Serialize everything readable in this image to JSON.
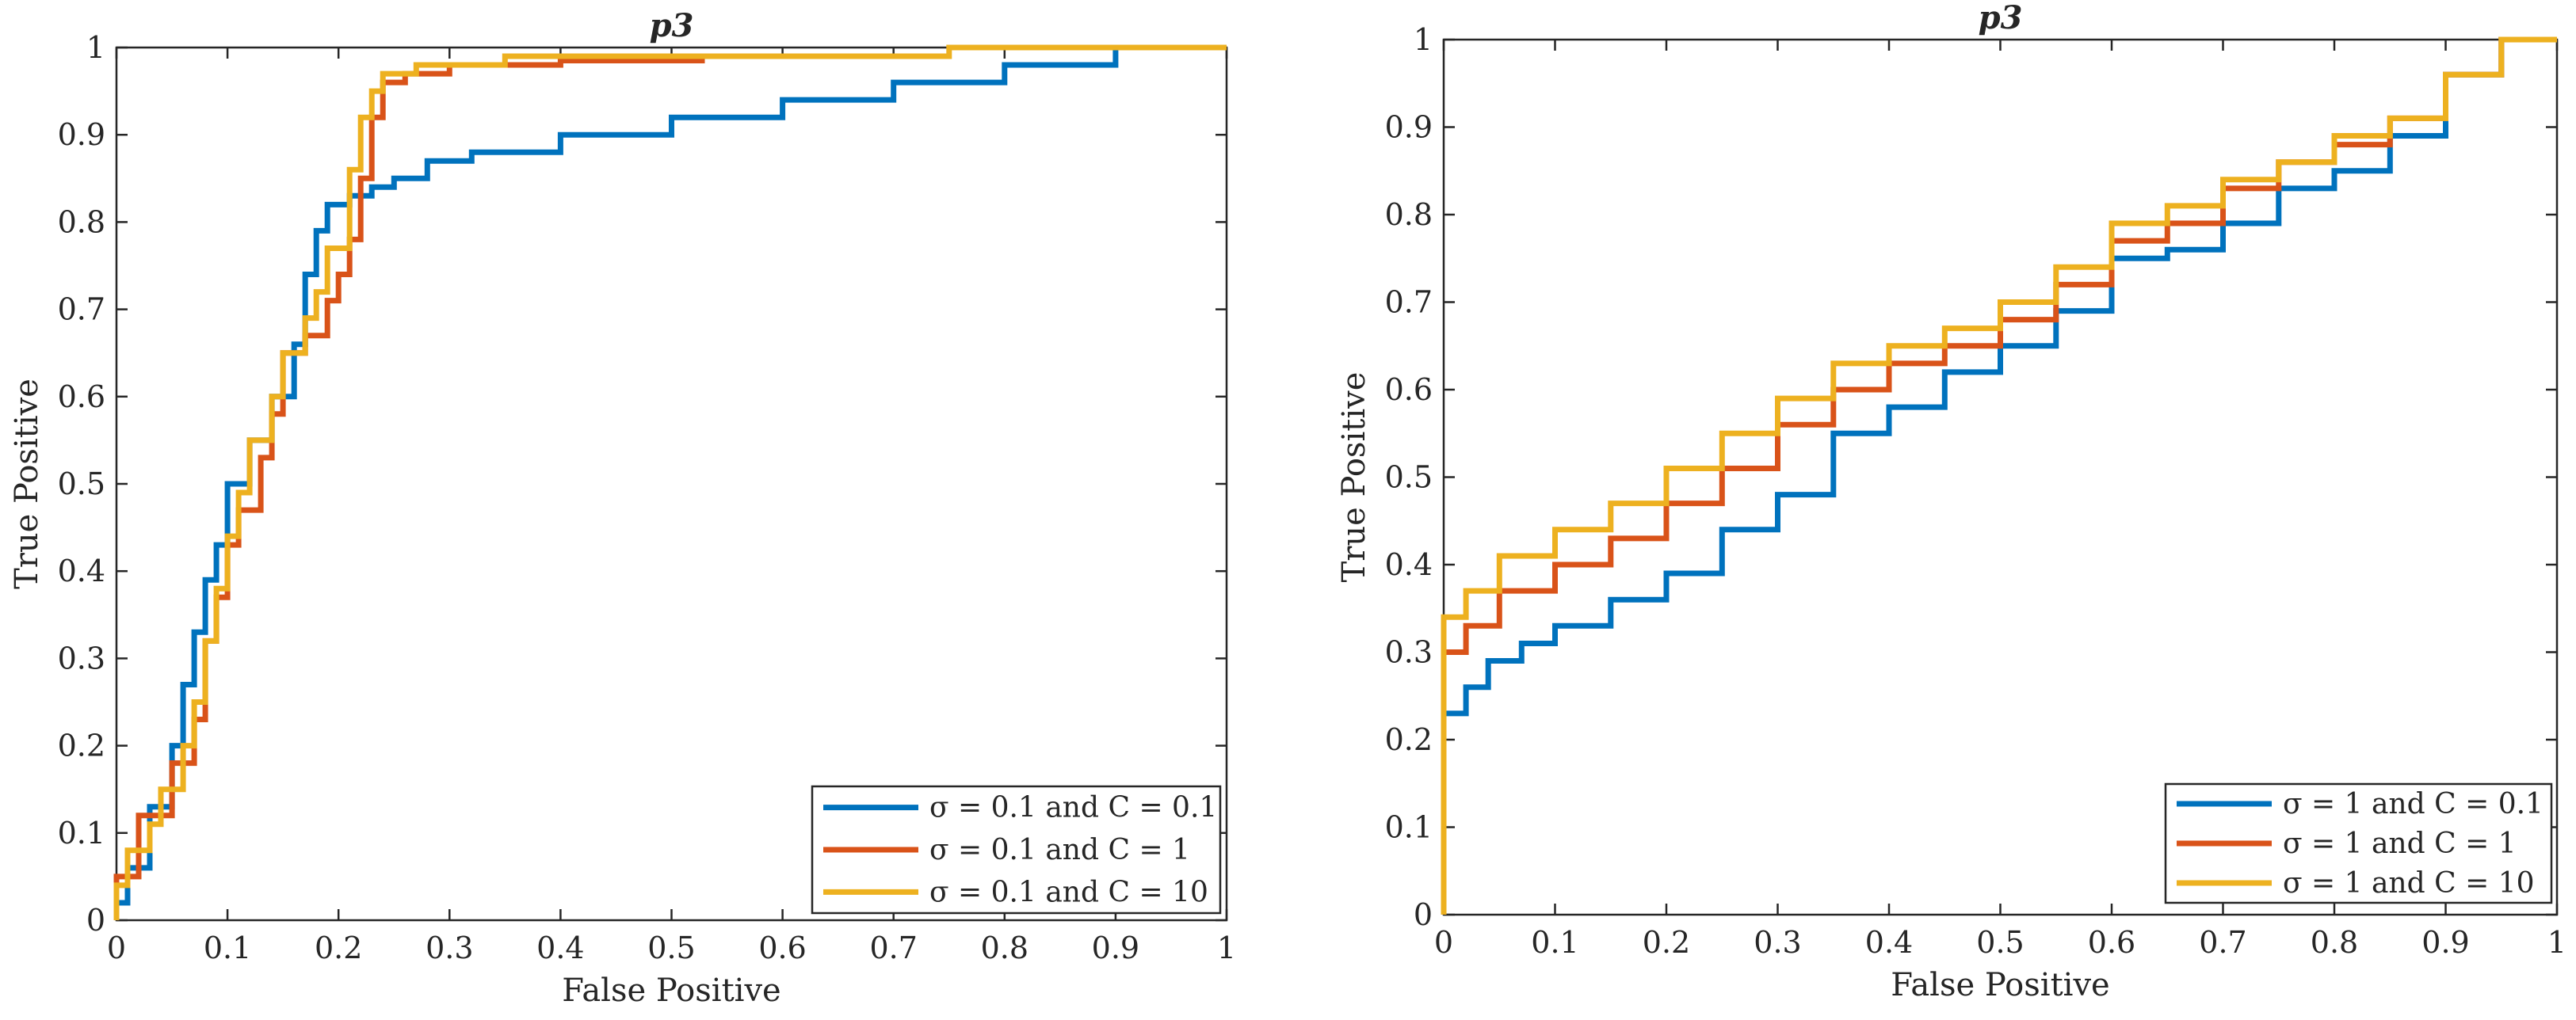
{
  "chart_data": [
    {
      "type": "line",
      "title": "p3",
      "xlabel": "False Positive",
      "ylabel": "True Positive",
      "xlim": [
        0,
        1
      ],
      "ylim": [
        0,
        1
      ],
      "xticks": [
        "0",
        "0.1",
        "0.2",
        "0.3",
        "0.4",
        "0.5",
        "0.6",
        "0.7",
        "0.8",
        "0.9",
        "1"
      ],
      "yticks": [
        "0",
        "0.1",
        "0.2",
        "0.3",
        "0.4",
        "0.5",
        "0.6",
        "0.7",
        "0.8",
        "0.9",
        "1"
      ],
      "grid": false,
      "legend_position": "bottom-right",
      "series": [
        {
          "name": "σ = 0.1 and C = 0.1",
          "color": "#0072BD",
          "points": [
            [
              0,
              0
            ],
            [
              0.01,
              0.02
            ],
            [
              0.03,
              0.06
            ],
            [
              0.05,
              0.13
            ],
            [
              0.06,
              0.2
            ],
            [
              0.07,
              0.27
            ],
            [
              0.08,
              0.33
            ],
            [
              0.09,
              0.39
            ],
            [
              0.1,
              0.43
            ],
            [
              0.12,
              0.5
            ],
            [
              0.14,
              0.55
            ],
            [
              0.16,
              0.6
            ],
            [
              0.17,
              0.66
            ],
            [
              0.18,
              0.74
            ],
            [
              0.19,
              0.79
            ],
            [
              0.21,
              0.82
            ],
            [
              0.23,
              0.83
            ],
            [
              0.25,
              0.84
            ],
            [
              0.28,
              0.85
            ],
            [
              0.32,
              0.87
            ],
            [
              0.4,
              0.88
            ],
            [
              0.5,
              0.9
            ],
            [
              0.6,
              0.92
            ],
            [
              0.7,
              0.94
            ],
            [
              0.8,
              0.96
            ],
            [
              0.9,
              0.98
            ],
            [
              1,
              1
            ]
          ]
        },
        {
          "name": "σ = 0.1 and C = 1",
          "color": "#D95319",
          "points": [
            [
              0,
              0
            ],
            [
              0.02,
              0.05
            ],
            [
              0.05,
              0.12
            ],
            [
              0.07,
              0.18
            ],
            [
              0.08,
              0.23
            ],
            [
              0.09,
              0.32
            ],
            [
              0.1,
              0.37
            ],
            [
              0.11,
              0.43
            ],
            [
              0.13,
              0.47
            ],
            [
              0.14,
              0.53
            ],
            [
              0.15,
              0.58
            ],
            [
              0.17,
              0.65
            ],
            [
              0.19,
              0.67
            ],
            [
              0.2,
              0.71
            ],
            [
              0.21,
              0.74
            ],
            [
              0.22,
              0.78
            ],
            [
              0.23,
              0.85
            ],
            [
              0.24,
              0.92
            ],
            [
              0.26,
              0.96
            ],
            [
              0.3,
              0.97
            ],
            [
              0.4,
              0.98
            ],
            [
              0.53,
              0.985
            ]
          ]
        },
        {
          "name": "σ = 0.1 and C = 10",
          "color": "#EDB120",
          "points": [
            [
              0,
              0
            ],
            [
              0.01,
              0.04
            ],
            [
              0.03,
              0.08
            ],
            [
              0.04,
              0.11
            ],
            [
              0.06,
              0.15
            ],
            [
              0.07,
              0.2
            ],
            [
              0.08,
              0.25
            ],
            [
              0.09,
              0.32
            ],
            [
              0.1,
              0.38
            ],
            [
              0.11,
              0.44
            ],
            [
              0.12,
              0.49
            ],
            [
              0.14,
              0.55
            ],
            [
              0.15,
              0.6
            ],
            [
              0.17,
              0.65
            ],
            [
              0.18,
              0.69
            ],
            [
              0.19,
              0.72
            ],
            [
              0.21,
              0.77
            ],
            [
              0.22,
              0.86
            ],
            [
              0.23,
              0.92
            ],
            [
              0.24,
              0.95
            ],
            [
              0.27,
              0.97
            ],
            [
              0.35,
              0.98
            ],
            [
              0.5,
              0.99
            ],
            [
              0.75,
              0.99
            ],
            [
              0.9,
              1
            ],
            [
              1,
              1
            ]
          ]
        }
      ]
    },
    {
      "type": "line",
      "title": "p3",
      "xlabel": "False Positive",
      "ylabel": "True Positive",
      "xlim": [
        0,
        1
      ],
      "ylim": [
        0,
        1
      ],
      "xticks": [
        "0",
        "0.1",
        "0.2",
        "0.3",
        "0.4",
        "0.5",
        "0.6",
        "0.7",
        "0.8",
        "0.9",
        "1"
      ],
      "yticks": [
        "0",
        "0.1",
        "0.2",
        "0.3",
        "0.4",
        "0.5",
        "0.6",
        "0.7",
        "0.8",
        "0.9",
        "1"
      ],
      "grid": false,
      "legend_position": "bottom-right",
      "series": [
        {
          "name": "σ = 1 and C = 0.1",
          "color": "#0072BD",
          "points": [
            [
              0,
              0
            ],
            [
              0,
              0.21
            ],
            [
              0.02,
              0.23
            ],
            [
              0.04,
              0.26
            ],
            [
              0.07,
              0.29
            ],
            [
              0.1,
              0.31
            ],
            [
              0.15,
              0.33
            ],
            [
              0.2,
              0.36
            ],
            [
              0.25,
              0.39
            ],
            [
              0.3,
              0.44
            ],
            [
              0.35,
              0.48
            ],
            [
              0.4,
              0.55
            ],
            [
              0.45,
              0.58
            ],
            [
              0.5,
              0.62
            ],
            [
              0.55,
              0.65
            ],
            [
              0.6,
              0.69
            ],
            [
              0.65,
              0.75
            ],
            [
              0.7,
              0.76
            ],
            [
              0.75,
              0.79
            ],
            [
              0.8,
              0.83
            ],
            [
              0.85,
              0.85
            ],
            [
              0.9,
              0.89
            ],
            [
              0.95,
              0.96
            ],
            [
              1,
              1
            ]
          ]
        },
        {
          "name": "σ = 1 and C = 1",
          "color": "#D95319",
          "points": [
            [
              0,
              0
            ],
            [
              0,
              0.27
            ],
            [
              0.02,
              0.3
            ],
            [
              0.05,
              0.33
            ],
            [
              0.1,
              0.37
            ],
            [
              0.15,
              0.4
            ],
            [
              0.2,
              0.43
            ],
            [
              0.25,
              0.47
            ],
            [
              0.3,
              0.51
            ],
            [
              0.35,
              0.56
            ],
            [
              0.4,
              0.6
            ],
            [
              0.45,
              0.63
            ],
            [
              0.5,
              0.65
            ],
            [
              0.55,
              0.68
            ],
            [
              0.6,
              0.72
            ],
            [
              0.65,
              0.77
            ],
            [
              0.7,
              0.79
            ],
            [
              0.75,
              0.83
            ],
            [
              0.8,
              0.86
            ],
            [
              0.85,
              0.88
            ],
            [
              0.9,
              0.91
            ],
            [
              0.95,
              0.96
            ],
            [
              1,
              1
            ]
          ]
        },
        {
          "name": "σ = 1 and C = 10",
          "color": "#EDB120",
          "points": [
            [
              0,
              0
            ],
            [
              0,
              0.31
            ],
            [
              0.02,
              0.34
            ],
            [
              0.05,
              0.37
            ],
            [
              0.1,
              0.41
            ],
            [
              0.15,
              0.44
            ],
            [
              0.2,
              0.47
            ],
            [
              0.25,
              0.51
            ],
            [
              0.3,
              0.55
            ],
            [
              0.35,
              0.59
            ],
            [
              0.4,
              0.63
            ],
            [
              0.45,
              0.65
            ],
            [
              0.5,
              0.67
            ],
            [
              0.55,
              0.7
            ],
            [
              0.6,
              0.74
            ],
            [
              0.65,
              0.79
            ],
            [
              0.7,
              0.81
            ],
            [
              0.75,
              0.84
            ],
            [
              0.8,
              0.86
            ],
            [
              0.85,
              0.89
            ],
            [
              0.9,
              0.91
            ],
            [
              0.95,
              0.96
            ],
            [
              1,
              1
            ]
          ]
        }
      ]
    }
  ]
}
